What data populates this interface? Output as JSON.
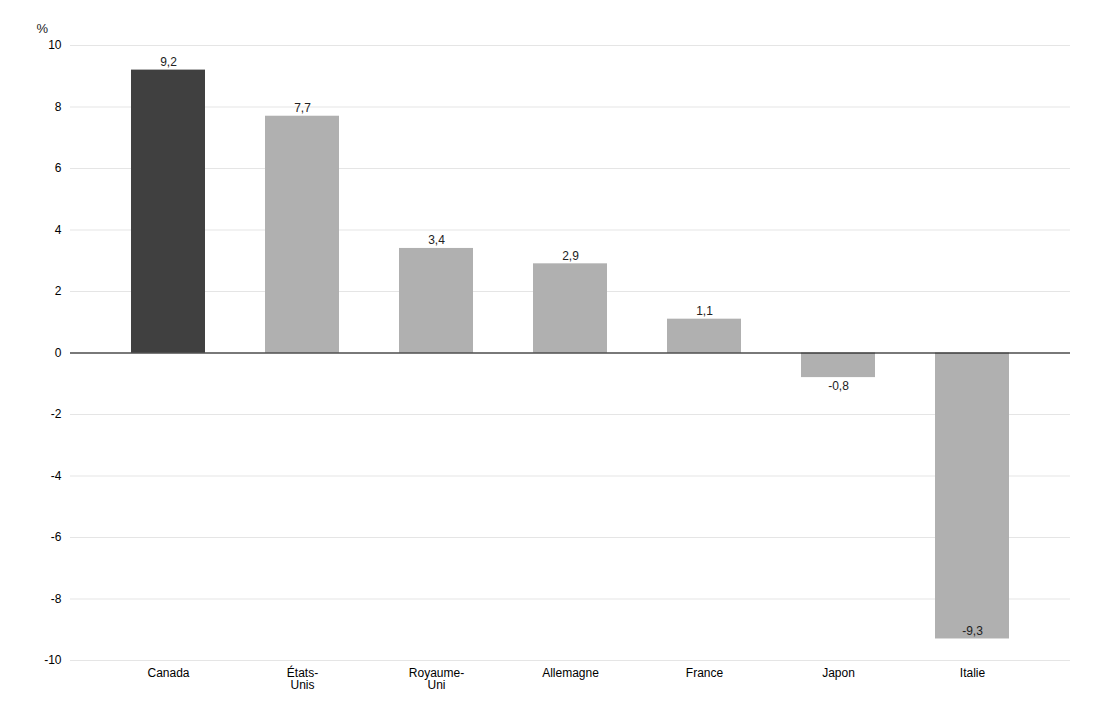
{
  "chart_data": {
    "type": "bar",
    "categories": [
      "Canada",
      "États-\nUnis",
      "Royaume-\nUni",
      "Allemagne",
      "France",
      "Japon",
      "Italie"
    ],
    "values": [
      9.2,
      7.7,
      3.4,
      2.9,
      1.1,
      -0.8,
      -9.3
    ],
    "value_labels": [
      "9,2",
      "7,7",
      "3,4",
      "2,9",
      "1,1",
      "-0,8",
      "-9,3"
    ],
    "data_labels": true,
    "colors": [
      "#404040",
      "#b0b0b0",
      "#b0b0b0",
      "#b0b0b0",
      "#b0b0b0",
      "#b0b0b0",
      "#b0b0b0"
    ],
    "ylabel": "%",
    "ylim": [
      -10,
      10
    ],
    "yticks": [
      -10,
      -8,
      -6,
      -4,
      -2,
      0,
      2,
      4,
      6,
      8,
      10
    ],
    "grid": true
  }
}
